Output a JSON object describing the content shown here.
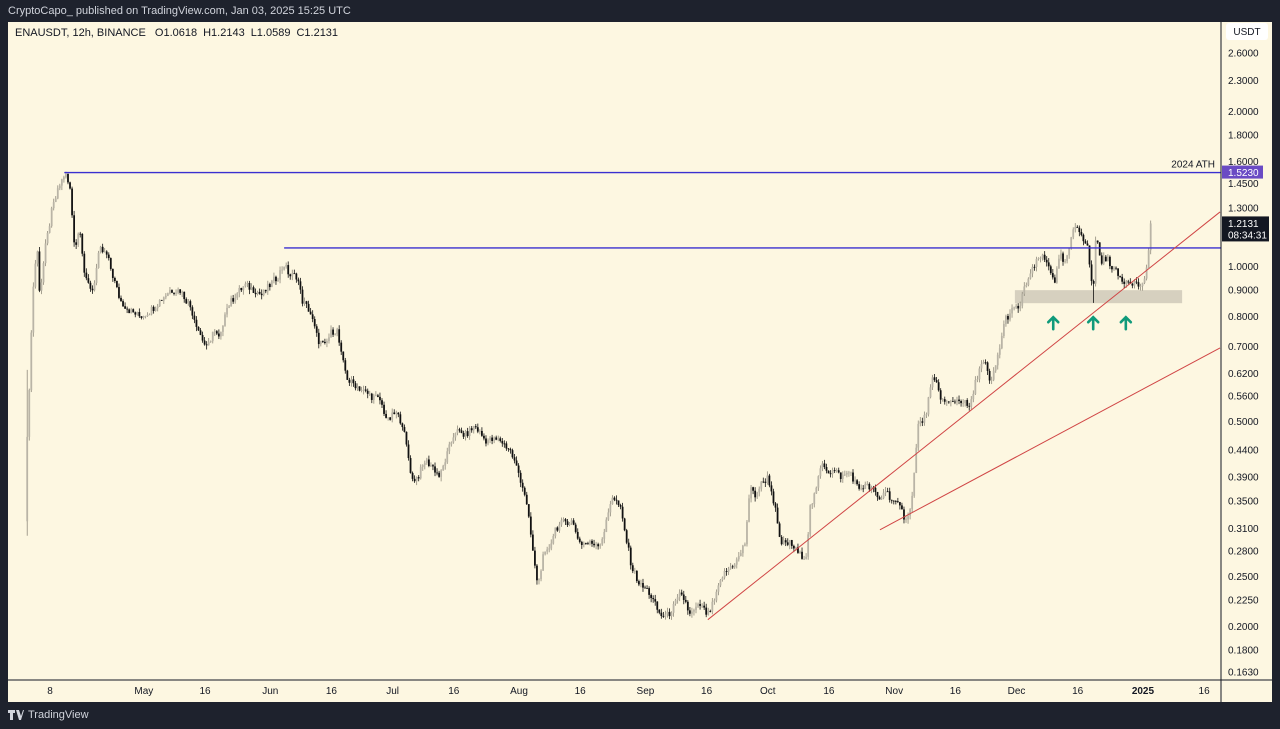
{
  "header": {
    "published": "CryptoCapo_ published on TradingView.com, Jan 03, 2025 15:25 UTC"
  },
  "legend": {
    "symbol": "ENAUSDT, 12h, BINANCE",
    "open": "O1.0618",
    "high": "H1.2143",
    "low": "L1.0589",
    "close": "C1.2131"
  },
  "footer": {
    "brand": "TradingView"
  },
  "colors": {
    "background": "#fdf7e1",
    "bull": "#b9b4a6",
    "bear": "#111111",
    "level_line": "#3a2fd0",
    "trend_line": "#d04545",
    "zone": "#cfc9b8",
    "arrow": "#0f9a7a",
    "ath_badge": "#6a4bc4"
  },
  "chart_data": {
    "type": "candlestick",
    "title": "ENAUSDT, 12h, BINANCE",
    "x_unit": "days since 2024-04-01",
    "y_scale": "log",
    "ylabel": "USDT",
    "ylim": [
      0.155,
      2.75
    ],
    "price_ticks": [
      "2.6000",
      "2.3000",
      "2.0000",
      "1.8000",
      "1.6000",
      "1.4500",
      "1.3000",
      "1.0000",
      "0.9000",
      "0.8000",
      "0.7000",
      "0.6200",
      "0.5600",
      "0.5000",
      "0.4400",
      "0.3900",
      "0.3500",
      "0.3100",
      "0.2800",
      "0.2500",
      "0.2250",
      "0.2000",
      "0.1800",
      "0.1630"
    ],
    "time_ticks": [
      {
        "day": 7,
        "label": "8"
      },
      {
        "day": 30,
        "label": "May"
      },
      {
        "day": 45,
        "label": "16"
      },
      {
        "day": 61,
        "label": "Jun"
      },
      {
        "day": 76,
        "label": "16"
      },
      {
        "day": 91,
        "label": "Jul"
      },
      {
        "day": 106,
        "label": "16"
      },
      {
        "day": 122,
        "label": "Aug"
      },
      {
        "day": 137,
        "label": "16"
      },
      {
        "day": 153,
        "label": "Sep"
      },
      {
        "day": 168,
        "label": "16"
      },
      {
        "day": 183,
        "label": "Oct"
      },
      {
        "day": 198,
        "label": "16"
      },
      {
        "day": 214,
        "label": "Nov"
      },
      {
        "day": 229,
        "label": "16"
      },
      {
        "day": 244,
        "label": "Dec"
      },
      {
        "day": 259,
        "label": "16"
      },
      {
        "day": 275,
        "label": "2025",
        "bold": true
      },
      {
        "day": 290,
        "label": "16"
      }
    ],
    "price_path": [
      [
        1.4,
        0.46
      ],
      [
        2.8,
        0.9
      ],
      [
        3.8,
        1.1
      ],
      [
        4.5,
        0.88
      ],
      [
        5.8,
        1.08
      ],
      [
        7.5,
        1.29
      ],
      [
        9.4,
        1.44
      ],
      [
        10.7,
        1.52
      ],
      [
        11.9,
        1.41
      ],
      [
        13.1,
        1.08
      ],
      [
        14.3,
        1.2
      ],
      [
        15.6,
        0.94
      ],
      [
        17.5,
        0.9
      ],
      [
        19.2,
        1.08
      ],
      [
        21,
        1.05
      ],
      [
        22.4,
        0.96
      ],
      [
        24.2,
        0.86
      ],
      [
        26.6,
        0.82
      ],
      [
        29.1,
        0.8
      ],
      [
        31.5,
        0.82
      ],
      [
        34,
        0.86
      ],
      [
        36.4,
        0.9
      ],
      [
        38.9,
        0.9
      ],
      [
        41.3,
        0.84
      ],
      [
        43.8,
        0.74
      ],
      [
        45.5,
        0.69
      ],
      [
        47,
        0.75
      ],
      [
        48.7,
        0.72
      ],
      [
        49.9,
        0.82
      ],
      [
        52.4,
        0.88
      ],
      [
        54.8,
        0.92
      ],
      [
        57.3,
        0.9
      ],
      [
        59,
        0.88
      ],
      [
        60.9,
        0.92
      ],
      [
        62.9,
        0.96
      ],
      [
        64.4,
        1.01
      ],
      [
        65.8,
        0.96
      ],
      [
        67.6,
        0.96
      ],
      [
        68.8,
        0.86
      ],
      [
        70.7,
        0.82
      ],
      [
        72.7,
        0.72
      ],
      [
        74.4,
        0.7
      ],
      [
        76.1,
        0.75
      ],
      [
        77.4,
        0.75
      ],
      [
        78.6,
        0.66
      ],
      [
        80.1,
        0.6
      ],
      [
        81.8,
        0.59
      ],
      [
        84.2,
        0.57
      ],
      [
        85.9,
        0.56
      ],
      [
        87.9,
        0.55
      ],
      [
        89.8,
        0.5
      ],
      [
        91.6,
        0.52
      ],
      [
        93.3,
        0.5
      ],
      [
        94.8,
        0.43
      ],
      [
        95.8,
        0.385
      ],
      [
        97.2,
        0.39
      ],
      [
        99,
        0.42
      ],
      [
        100.7,
        0.41
      ],
      [
        102.6,
        0.39
      ],
      [
        103.9,
        0.42
      ],
      [
        106.3,
        0.48
      ],
      [
        108.8,
        0.47
      ],
      [
        111.2,
        0.49
      ],
      [
        113.7,
        0.46
      ],
      [
        114.9,
        0.46
      ],
      [
        117.4,
        0.46
      ],
      [
        119.8,
        0.44
      ],
      [
        121.8,
        0.4
      ],
      [
        123.5,
        0.36
      ],
      [
        124.7,
        0.31
      ],
      [
        125.9,
        0.26
      ],
      [
        126.7,
        0.24
      ],
      [
        127.7,
        0.27
      ],
      [
        129.1,
        0.28
      ],
      [
        130.9,
        0.31
      ],
      [
        133.3,
        0.32
      ],
      [
        135,
        0.32
      ],
      [
        137,
        0.29
      ],
      [
        139.4,
        0.29
      ],
      [
        141.9,
        0.29
      ],
      [
        143.1,
        0.31
      ],
      [
        144.8,
        0.36
      ],
      [
        146.8,
        0.34
      ],
      [
        148.5,
        0.29
      ],
      [
        149.7,
        0.26
      ],
      [
        151.7,
        0.24
      ],
      [
        153.6,
        0.235
      ],
      [
        155.4,
        0.22
      ],
      [
        156.6,
        0.21
      ],
      [
        158.5,
        0.21
      ],
      [
        160.2,
        0.22
      ],
      [
        161.5,
        0.23
      ],
      [
        162.7,
        0.225
      ],
      [
        163.9,
        0.21
      ],
      [
        166.4,
        0.22
      ],
      [
        168.3,
        0.21
      ],
      [
        170,
        0.225
      ],
      [
        171.8,
        0.25
      ],
      [
        173.7,
        0.26
      ],
      [
        175.7,
        0.27
      ],
      [
        177.4,
        0.29
      ],
      [
        178.6,
        0.37
      ],
      [
        179.9,
        0.36
      ],
      [
        181.6,
        0.38
      ],
      [
        183.1,
        0.39
      ],
      [
        184.8,
        0.34
      ],
      [
        186,
        0.29
      ],
      [
        188.5,
        0.29
      ],
      [
        190.9,
        0.275
      ],
      [
        192.4,
        0.275
      ],
      [
        193.4,
        0.34
      ],
      [
        194.6,
        0.36
      ],
      [
        196.3,
        0.42
      ],
      [
        197.8,
        0.4
      ],
      [
        199.5,
        0.4
      ],
      [
        201.2,
        0.39
      ],
      [
        203.2,
        0.4
      ],
      [
        205.1,
        0.37
      ],
      [
        206.8,
        0.375
      ],
      [
        208.6,
        0.37
      ],
      [
        210.5,
        0.35
      ],
      [
        211.7,
        0.37
      ],
      [
        213.7,
        0.35
      ],
      [
        215.4,
        0.34
      ],
      [
        216.6,
        0.325
      ],
      [
        217.9,
        0.335
      ],
      [
        219.1,
        0.41
      ],
      [
        219.8,
        0.49
      ],
      [
        221.6,
        0.51
      ],
      [
        223.3,
        0.6
      ],
      [
        224.5,
        0.59
      ],
      [
        225.7,
        0.55
      ],
      [
        227.2,
        0.54
      ],
      [
        228.9,
        0.55
      ],
      [
        230.6,
        0.55
      ],
      [
        232.6,
        0.53
      ],
      [
        233.8,
        0.59
      ],
      [
        235,
        0.64
      ],
      [
        236.3,
        0.65
      ],
      [
        237.5,
        0.59
      ],
      [
        238.7,
        0.63
      ],
      [
        239.9,
        0.7
      ],
      [
        241.2,
        0.79
      ],
      [
        242.9,
        0.82
      ],
      [
        244.9,
        0.84
      ],
      [
        246.1,
        0.92
      ],
      [
        247.8,
        0.98
      ],
      [
        249.8,
        1.05
      ],
      [
        251.7,
        1.01
      ],
      [
        253.4,
        0.94
      ],
      [
        254.7,
        1.05
      ],
      [
        255.9,
        1.01
      ],
      [
        257.1,
        1.1
      ],
      [
        258.3,
        1.2
      ],
      [
        259.6,
        1.18
      ],
      [
        261.5,
        1.08
      ],
      [
        262.8,
        0.88
      ],
      [
        263.5,
        1.18
      ],
      [
        264.5,
        1.03
      ],
      [
        266.5,
        1.03
      ],
      [
        268.2,
        0.98
      ],
      [
        269.9,
        0.94
      ],
      [
        271.9,
        0.94
      ],
      [
        273.9,
        0.92
      ],
      [
        274.9,
        0.92
      ],
      [
        276.1,
        1.01
      ],
      [
        277.3,
        1.2131
      ]
    ],
    "notable_wicks": [
      {
        "day": 1.4,
        "low": 0.3,
        "high": 0.63
      },
      {
        "day": 262.8,
        "low": 0.85
      },
      {
        "day": 277.3,
        "high": 1.2143
      }
    ],
    "horizontal_levels": [
      {
        "name": "2024 ATH",
        "price": 1.523,
        "from_day": 10.5,
        "label": "2024 ATH",
        "badge": "1.5230"
      },
      {
        "name": "resistance",
        "price": 1.087,
        "from_day": 64.4
      }
    ],
    "trend_lines": [
      {
        "from": [
          168.3,
          0.206
        ],
        "to": [
          293.9,
          1.277
        ]
      },
      {
        "from": [
          210.5,
          0.308
        ],
        "to": [
          293.9,
          0.695
        ]
      }
    ],
    "support_zone": {
      "from_day": 243.6,
      "to_day": 284.6,
      "low": 0.849,
      "high": 0.9
    },
    "arrows_up": [
      253.0,
      262.8,
      270.8
    ],
    "last_price": {
      "value": "1.2131",
      "countdown": "08:34:31"
    }
  }
}
